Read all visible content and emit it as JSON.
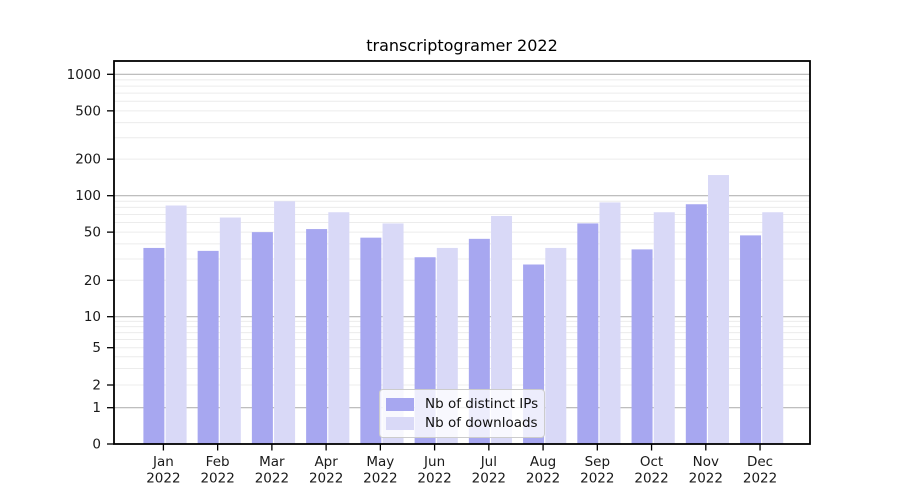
{
  "chart_data": {
    "type": "bar",
    "title": "transcriptogramer 2022",
    "categories": [
      "Jan 2022",
      "Feb 2022",
      "Mar 2022",
      "Apr 2022",
      "May 2022",
      "Jun 2022",
      "Jul 2022",
      "Aug 2022",
      "Sep 2022",
      "Oct 2022",
      "Nov 2022",
      "Dec 2022"
    ],
    "series": [
      {
        "name": "Nb of distinct IPs",
        "color": "#a7a7f0",
        "values": [
          37,
          35,
          50,
          53,
          45,
          31,
          44,
          27,
          59,
          36,
          85,
          47
        ]
      },
      {
        "name": "Nb of downloads",
        "color": "#d9d9f7",
        "values": [
          83,
          66,
          90,
          73,
          59,
          37,
          68,
          37,
          88,
          73,
          148,
          73
        ]
      }
    ],
    "xlabel": "",
    "ylabel": "",
    "yscale": "symlog",
    "yticks": [
      0,
      1,
      2,
      5,
      10,
      20,
      50,
      100,
      200,
      500,
      1000
    ],
    "ylim": [
      0,
      1300
    ],
    "grid": {
      "major_at": [
        1,
        10,
        100,
        1000
      ],
      "minor": "2-9 per decade",
      "major_color": "#b4b4b4",
      "minor_color": "#ececec"
    },
    "legend": {
      "position": "bottom-center",
      "background": "rgba(255,255,255,0.8)"
    },
    "colors": {
      "spine": "#000000",
      "tick_text": "#1a1a1a",
      "background": "#ffffff"
    }
  }
}
